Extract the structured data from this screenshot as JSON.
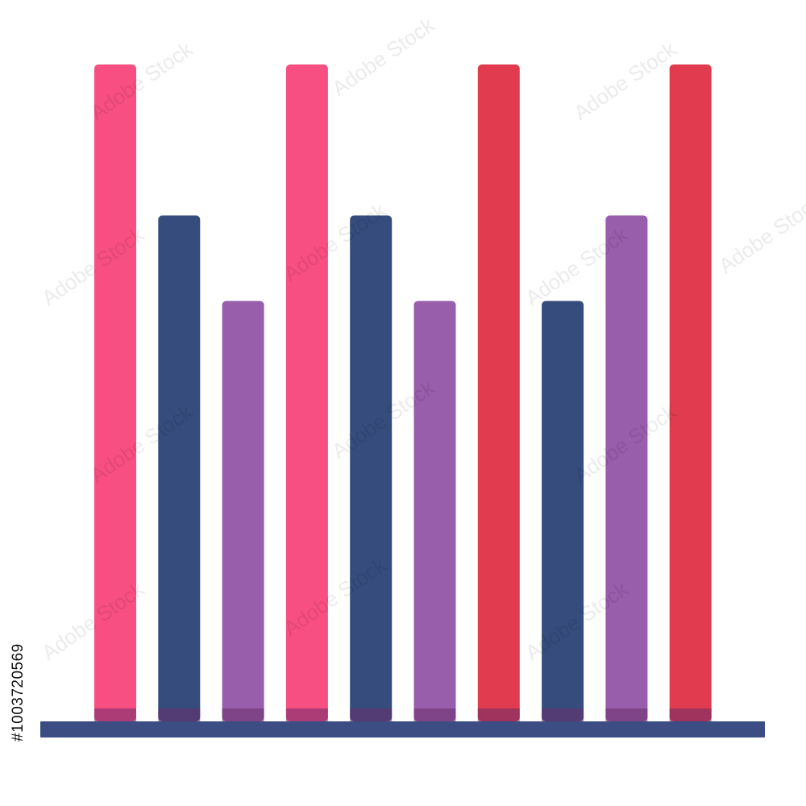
{
  "graphic": {
    "kind": "bar-chart-illustration",
    "bars": [
      {
        "level": 1.0,
        "color": "#f84f82"
      },
      {
        "level": 0.77,
        "color": "#364c7d"
      },
      {
        "level": 0.64,
        "color": "#985dab"
      },
      {
        "level": 1.0,
        "color": "#f84f82"
      },
      {
        "level": 0.77,
        "color": "#364c7d"
      },
      {
        "level": 0.64,
        "color": "#985dab"
      },
      {
        "level": 1.0,
        "color": "#e03b4e"
      },
      {
        "level": 0.64,
        "color": "#364c7d"
      },
      {
        "level": 0.77,
        "color": "#985dab"
      },
      {
        "level": 1.0,
        "color": "#e03b4e"
      }
    ],
    "baseline_color": "#3b4d82",
    "base_band_color": "#6b2d6b"
  },
  "watermark": {
    "text": "Adobe Stock"
  },
  "stock_id": "#1003720569"
}
